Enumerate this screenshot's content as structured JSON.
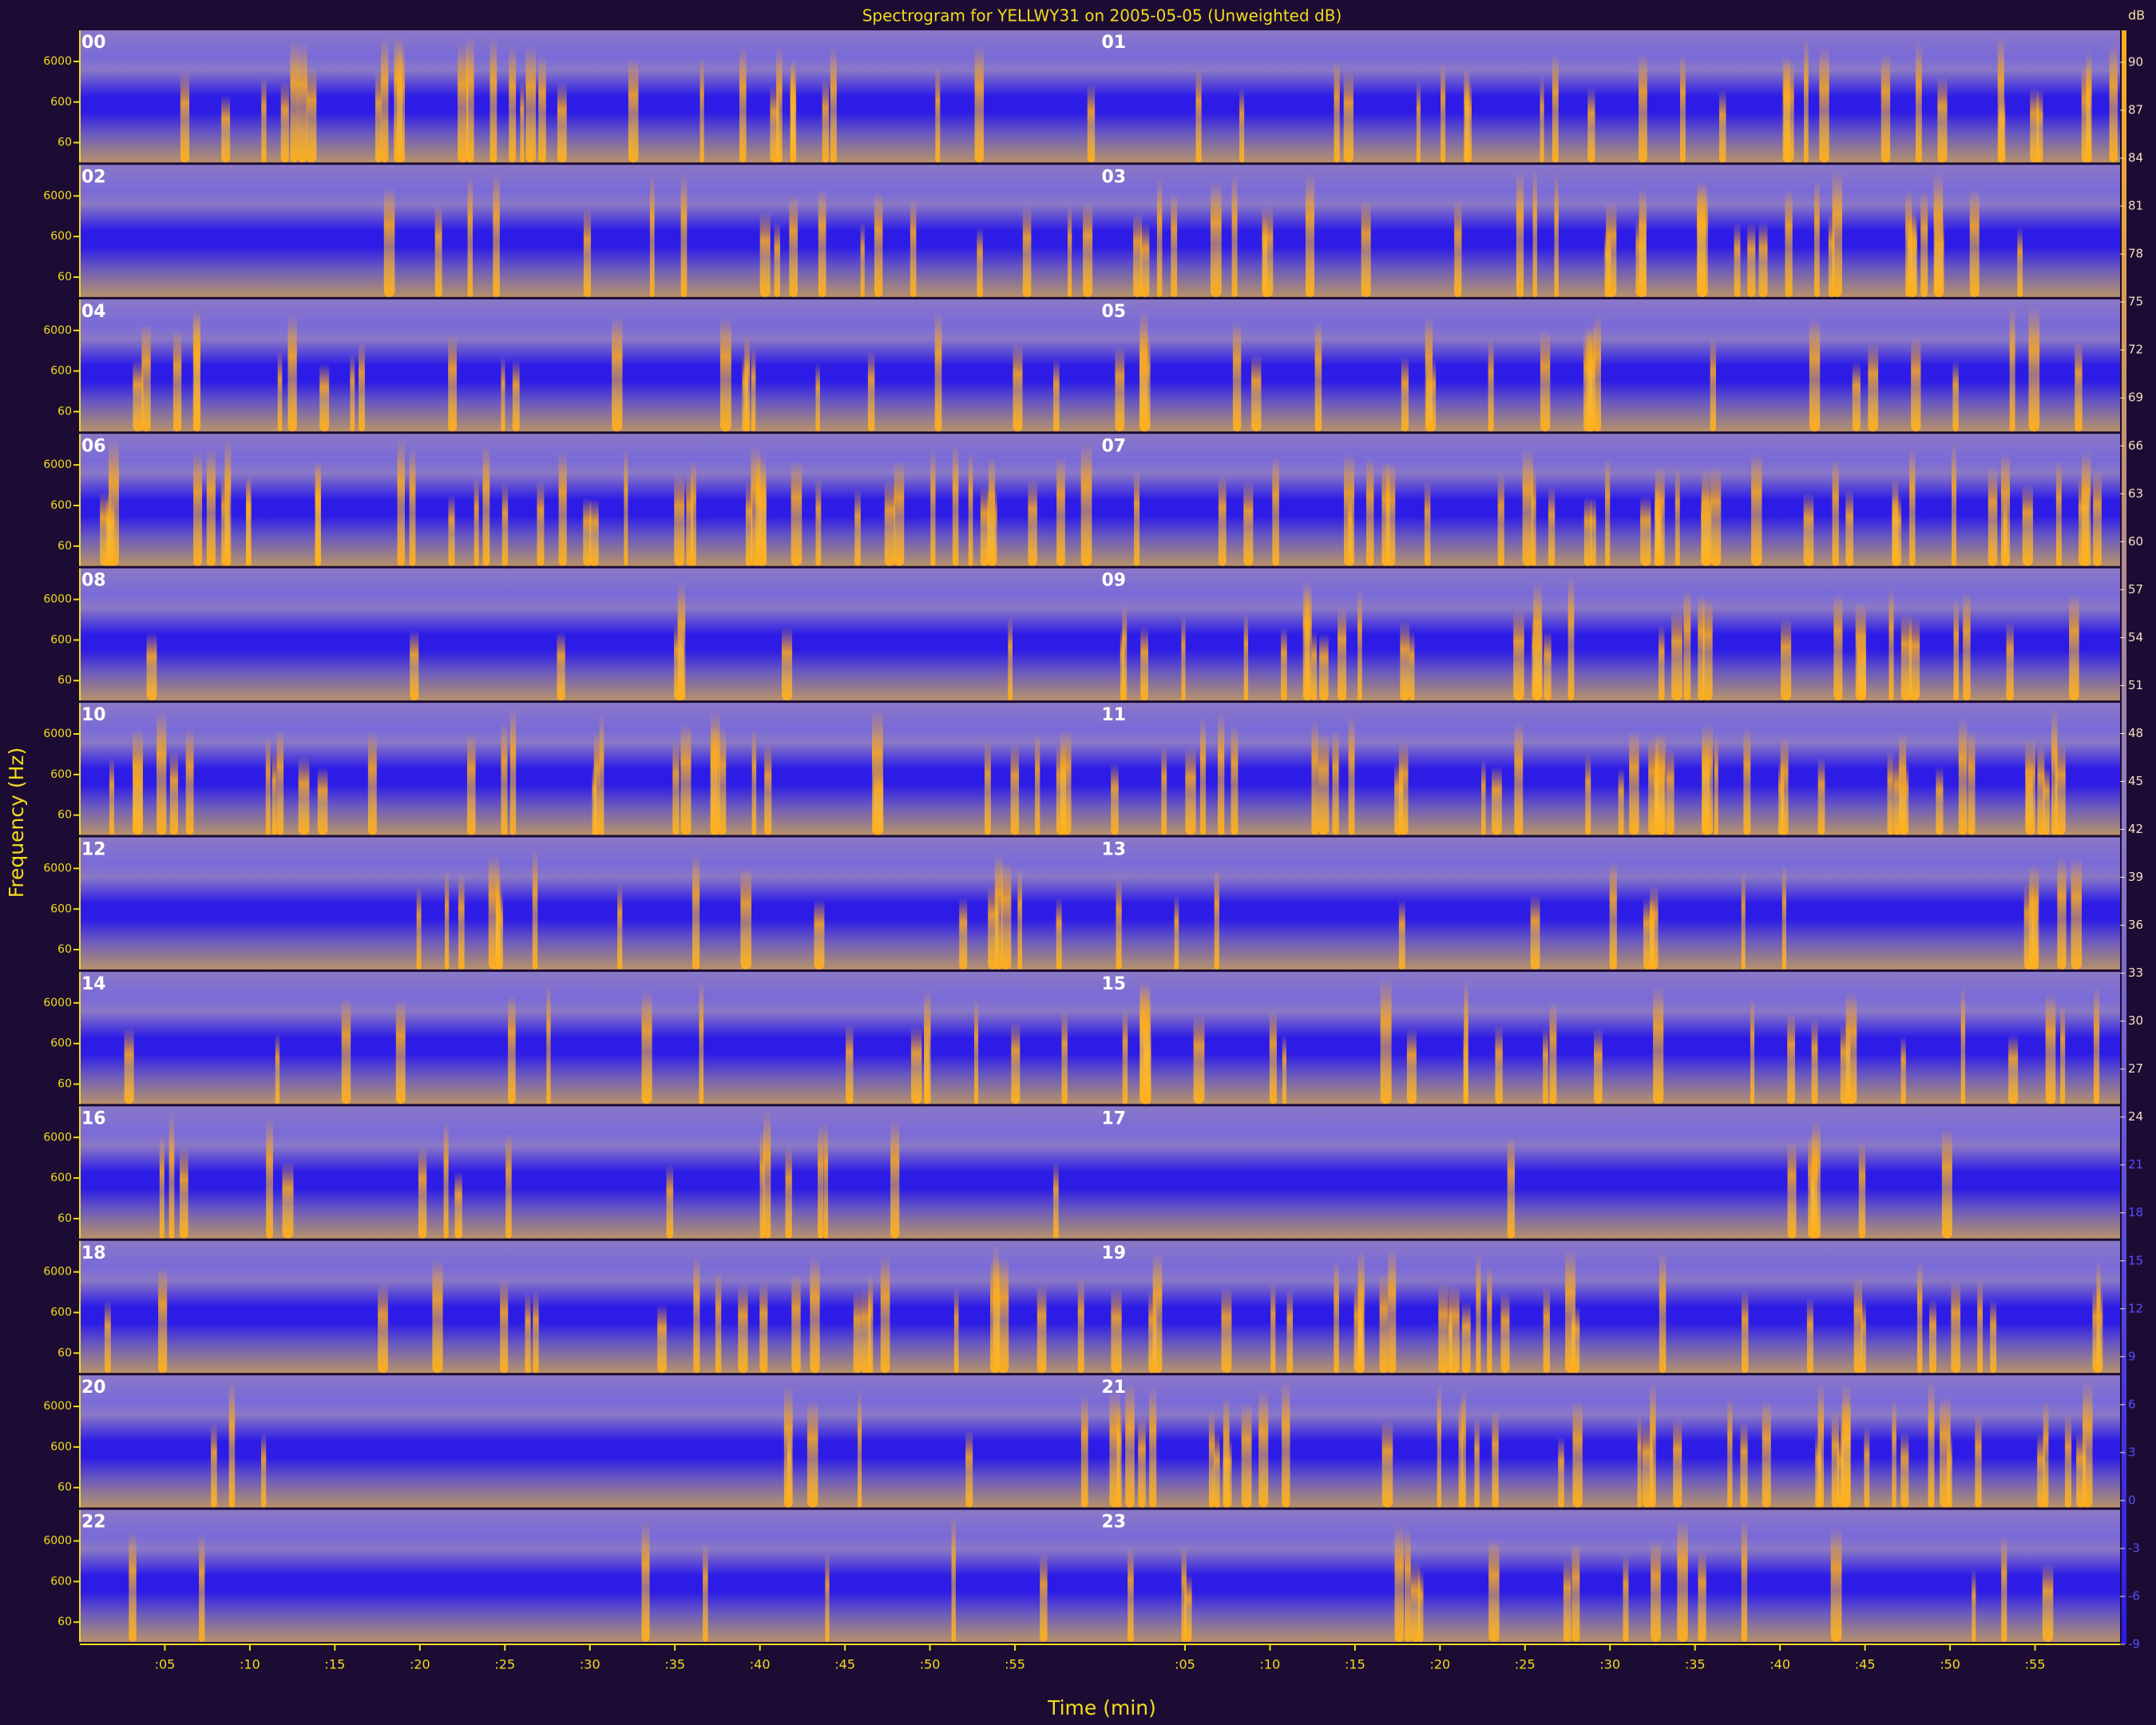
{
  "chart_data": {
    "type": "spectrogram",
    "title": "Spectrogram for YELLWY31 on 2005-05-05 (Unweighted dB)",
    "xlabel": "Time (min)",
    "ylabel": "Frequency (Hz)",
    "panels": [
      "00",
      "01",
      "02",
      "03",
      "04",
      "05",
      "06",
      "07",
      "08",
      "09",
      "10",
      "11",
      "12",
      "13",
      "14",
      "15",
      "16",
      "17",
      "18",
      "19",
      "20",
      "21",
      "22",
      "23"
    ],
    "xlim": [
      0,
      60
    ],
    "xticks": [
      {
        "value": 5,
        "label": ":05"
      },
      {
        "value": 10,
        "label": ":10"
      },
      {
        "value": 15,
        "label": ":15"
      },
      {
        "value": 20,
        "label": ":20"
      },
      {
        "value": 25,
        "label": ":25"
      },
      {
        "value": 30,
        "label": ":30"
      },
      {
        "value": 35,
        "label": ":35"
      },
      {
        "value": 40,
        "label": ":40"
      },
      {
        "value": 45,
        "label": ":45"
      },
      {
        "value": 50,
        "label": ":50"
      },
      {
        "value": 55,
        "label": ":55"
      }
    ],
    "ylim": [
      17,
      35000
    ],
    "log_y": true,
    "yticks": [
      6000,
      600,
      60
    ],
    "colorbar_label": "dB",
    "clim": [
      -9,
      92
    ],
    "cticks": [
      90,
      87,
      84,
      81,
      78,
      75,
      72,
      69,
      66,
      63,
      60,
      57,
      54,
      51,
      48,
      45,
      42,
      39,
      36,
      33,
      30,
      27,
      24,
      21,
      18,
      15,
      12,
      9,
      6,
      3,
      0,
      -3,
      -6,
      -9
    ],
    "colors": {
      "low": "#2c1ce6",
      "mid": "#8a78c6",
      "high": "#ffae1c"
    }
  }
}
